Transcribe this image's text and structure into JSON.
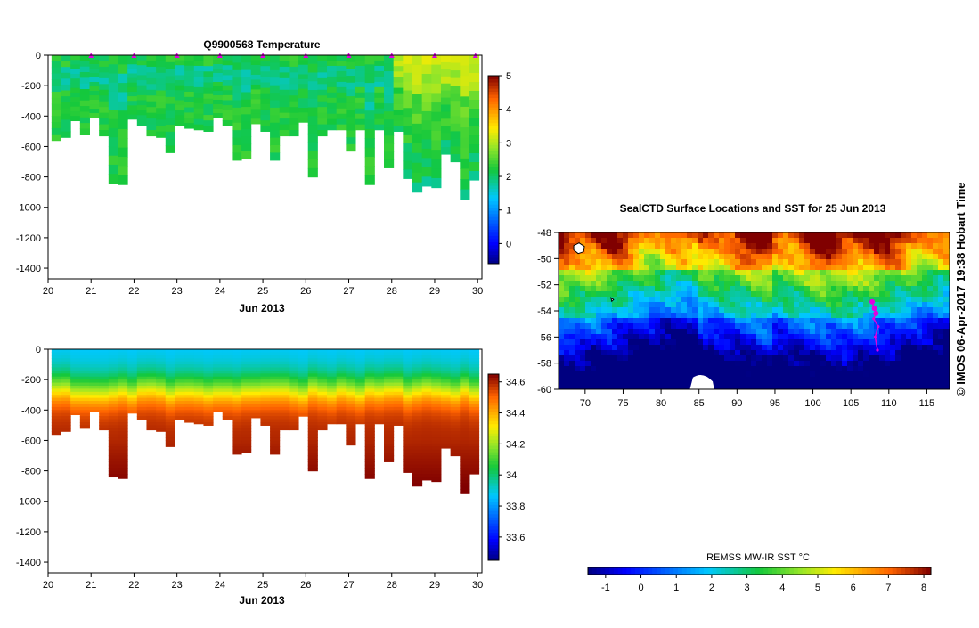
{
  "stamp": "© IMOS 06-Apr-2017 19:38 Hobart Time",
  "chart_data": [
    {
      "id": "temperature",
      "type": "heatmap",
      "title": "Q9900568  Temperature",
      "xlabel": "Jun 2013",
      "ylabel": "",
      "xlim": [
        20,
        30.1
      ],
      "ylim": [
        -1470,
        0
      ],
      "x_ticks": [
        "20",
        "21",
        "22",
        "23",
        "24",
        "25",
        "26",
        "27",
        "28",
        "29",
        "30"
      ],
      "y_ticks": [
        "0",
        "-200",
        "-400",
        "-600",
        "-800",
        "-1000",
        "-1200",
        "-1400"
      ],
      "colorbar": {
        "min": -0.6,
        "max": 5,
        "ticks": [
          "0",
          "1",
          "2",
          "3",
          "4",
          "5"
        ]
      },
      "surface_markers_day": [
        21,
        22,
        23,
        24,
        25,
        26,
        27,
        28,
        29,
        29.95
      ],
      "profile_depth_m": [
        -560,
        -540,
        -430,
        -520,
        -410,
        -530,
        -840,
        -850,
        -420,
        -460,
        -530,
        -540,
        -640,
        -460,
        -480,
        -490,
        -500,
        -410,
        -460,
        -690,
        -680,
        -450,
        -500,
        -690,
        -530,
        -530,
        -440,
        -800,
        -530,
        -490,
        -490,
        -630,
        -490,
        -850,
        -490,
        -740,
        -500,
        -810,
        -900,
        -860,
        -870,
        -650,
        -700,
        -950,
        -820
      ]
    },
    {
      "id": "salinity",
      "type": "heatmap",
      "title": "",
      "xlabel": "Jun 2013",
      "ylabel": "",
      "xlim": [
        20,
        30.1
      ],
      "ylim": [
        -1470,
        0
      ],
      "x_ticks": [
        "20",
        "21",
        "22",
        "23",
        "24",
        "25",
        "26",
        "27",
        "28",
        "29",
        "30"
      ],
      "y_ticks": [
        "0",
        "-200",
        "-400",
        "-600",
        "-800",
        "-1000",
        "-1200",
        "-1400"
      ],
      "colorbar": {
        "min": 33.45,
        "max": 34.65,
        "ticks": [
          "33.6",
          "33.8",
          "34",
          "34.2",
          "34.4",
          "34.6"
        ]
      }
    },
    {
      "id": "sst-map",
      "type": "heatmap",
      "title": "SealCTD Surface Locations and SST for 25 Jun 2013",
      "xlabel": "",
      "ylabel": "",
      "xlim": [
        66.5,
        118
      ],
      "ylim": [
        -60,
        -48
      ],
      "x_ticks": [
        "70",
        "75",
        "80",
        "85",
        "90",
        "95",
        "100",
        "105",
        "110",
        "115"
      ],
      "y_ticks": [
        "-48",
        "-50",
        "-52",
        "-54",
        "-56",
        "-58",
        "-60"
      ],
      "colorbar": {
        "label": "REMSS MW-IR SST °C",
        "min": -1.5,
        "max": 8.2,
        "ticks": [
          "-1",
          "0",
          "1",
          "2",
          "3",
          "4",
          "5",
          "6",
          "7",
          "8"
        ]
      },
      "seal_track": [
        [
          107.8,
          -53.3
        ],
        [
          108.1,
          -53.8
        ],
        [
          108.3,
          -54.2
        ],
        [
          108.0,
          -54.6
        ],
        [
          108.6,
          -55.2
        ],
        [
          108.2,
          -56.0
        ],
        [
          108.5,
          -57.0
        ]
      ]
    }
  ]
}
